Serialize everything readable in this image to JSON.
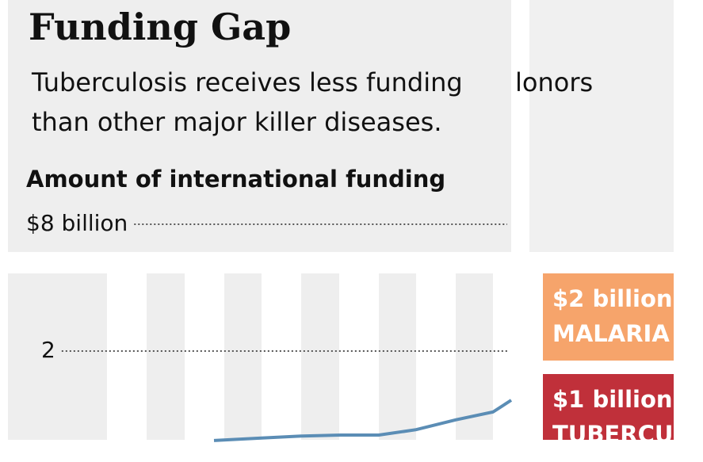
{
  "chart_data": {
    "type": "line",
    "title": "Funding Gap",
    "subtitle": [
      "Tuberculosis receives less funding",
      "lonors",
      "than other major killer diseases."
    ],
    "y_label": "Amount of international funding",
    "yticks": [
      {
        "value": 8,
        "label": "$8 billion"
      },
      2
    ],
    "categories": [
      null,
      null,
      null,
      null,
      null,
      null,
      null,
      null,
      null
    ],
    "series": [
      {
        "color": "#5b8db5",
        "values": [
          0.18,
          0.23,
          0.27,
          0.29,
          0.29,
          0.4,
          0.6,
          0.76,
          1.0
        ]
      }
    ],
    "annotations": [
      {
        "label": "$2 billion",
        "text": "MALARIA",
        "color": "#f6a46b"
      },
      {
        "label": "$1 billion",
        "text": "TUBERCULOSIS",
        "color": "#c0303a"
      }
    ]
  }
}
